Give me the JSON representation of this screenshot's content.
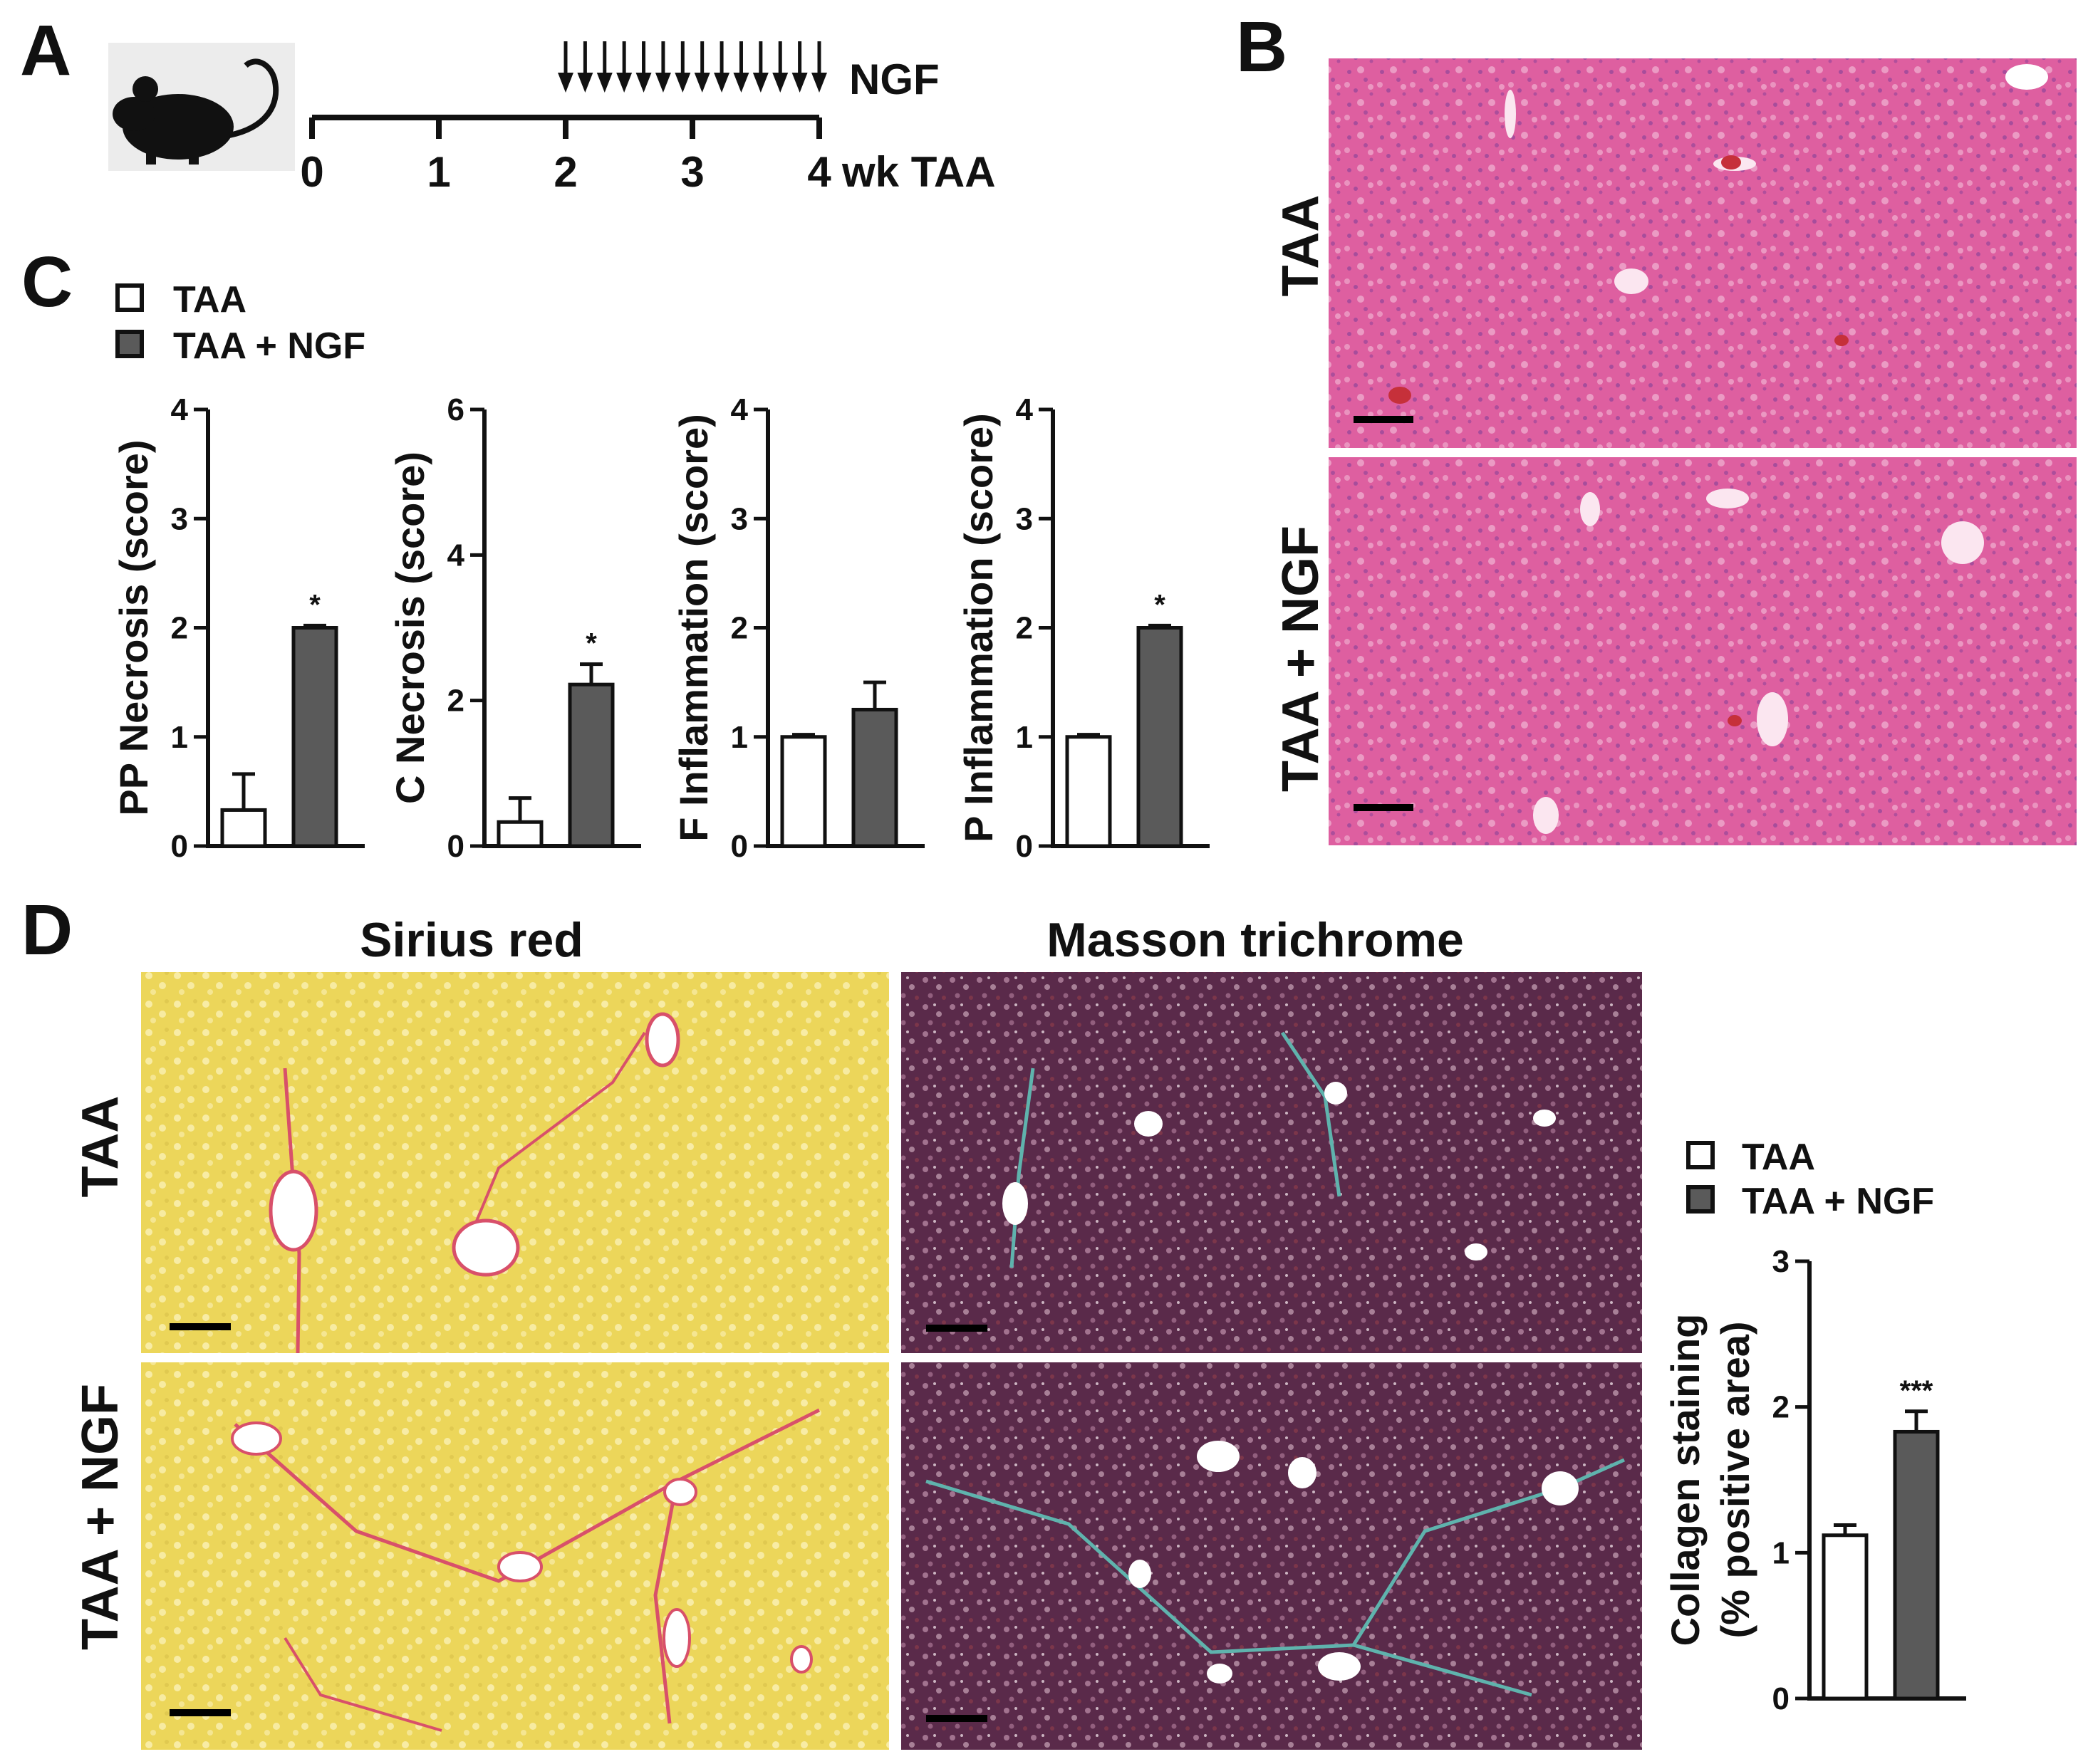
{
  "panels": {
    "a": "A",
    "b": "B",
    "c": "C",
    "d": "D"
  },
  "panel_a": {
    "treatment": "NGF",
    "ticks": [
      "0",
      "1",
      "2",
      "3",
      "4"
    ],
    "axis_unit": "wk TAA",
    "arrow_count": 14
  },
  "panel_b": {
    "rows": [
      "TAA",
      "TAA + NGF"
    ]
  },
  "panel_d": {
    "columns": [
      "Sirius red",
      "Masson trichrome"
    ],
    "rows": [
      "TAA",
      "TAA + NGF"
    ]
  },
  "legend": {
    "items": [
      "TAA",
      "TAA + NGF"
    ]
  },
  "colors": {
    "he_tissue": "#de5fa0",
    "sirius_red": "#ecd65a",
    "masson_trichrome": "#5a2a4a",
    "bar_open": "#ffffff",
    "bar_filled": "#5a5a5a"
  },
  "chart_data": [
    {
      "type": "bar",
      "categories": [
        "TAA",
        "TAA + NGF"
      ],
      "values": [
        0.33,
        2.0
      ],
      "errors": [
        0.33,
        0.02
      ],
      "significance": [
        "",
        "*"
      ],
      "ylabel": "PP Necrosis (score)",
      "ylim": [
        0,
        4
      ],
      "yticks": [
        "0",
        "1",
        "2",
        "3",
        "4"
      ],
      "legend_position": "top-left"
    },
    {
      "type": "bar",
      "categories": [
        "TAA",
        "TAA + NGF"
      ],
      "values": [
        0.33,
        2.22
      ],
      "errors": [
        0.33,
        0.28
      ],
      "significance": [
        "",
        "*"
      ],
      "ylabel": "C Necrosis (score)",
      "ylim": [
        0,
        6
      ],
      "yticks": [
        "0",
        "2",
        "4",
        "6"
      ]
    },
    {
      "type": "bar",
      "categories": [
        "TAA",
        "TAA + NGF"
      ],
      "values": [
        1.0,
        1.25
      ],
      "errors": [
        0.02,
        0.25
      ],
      "significance": [
        "",
        ""
      ],
      "ylabel": "F Inflammation (score)",
      "ylim": [
        0,
        4
      ],
      "yticks": [
        "0",
        "1",
        "2",
        "3",
        "4"
      ]
    },
    {
      "type": "bar",
      "categories": [
        "TAA",
        "TAA + NGF"
      ],
      "values": [
        1.0,
        2.0
      ],
      "errors": [
        0.02,
        0.02
      ],
      "significance": [
        "",
        "*"
      ],
      "ylabel": "P Inflammation (score)",
      "ylim": [
        0,
        4
      ],
      "yticks": [
        "0",
        "1",
        "2",
        "3",
        "4"
      ]
    },
    {
      "type": "bar",
      "categories": [
        "TAA",
        "TAA + NGF"
      ],
      "values": [
        1.12,
        1.83
      ],
      "errors": [
        0.07,
        0.14
      ],
      "significance": [
        "",
        "***"
      ],
      "ylabel": "Collagen staining",
      "ylabel2": "(% positive area)",
      "ylim": [
        0,
        3
      ],
      "yticks": [
        "0",
        "1",
        "2",
        "3"
      ],
      "legend_position": "top"
    }
  ]
}
